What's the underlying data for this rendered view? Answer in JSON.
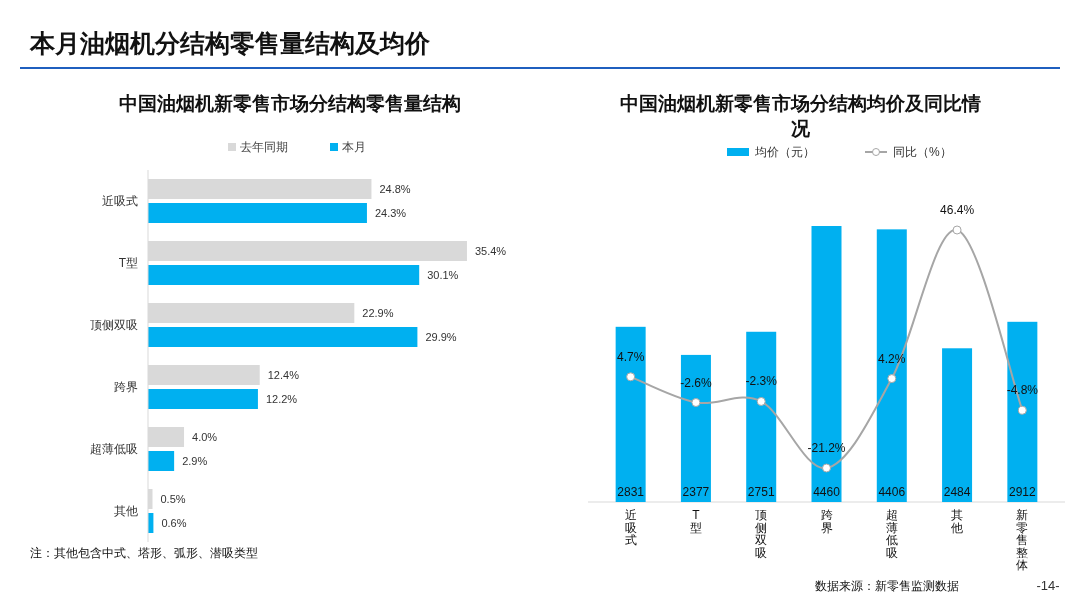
{
  "chart_data": [
    {
      "type": "other",
      "title": "本月油烟机分结构零售量结构及均价",
      "annotations": [
        "-14-"
      ]
    },
    {
      "type": "bar",
      "orientation": "horizontal",
      "title": "中国油烟机新零售市场分结构零售量结构",
      "categories": [
        "近吸式",
        "T型",
        "顶侧双吸",
        "跨界",
        "超薄低吸",
        "其他"
      ],
      "legend": "top",
      "series": [
        {
          "name": "去年同期",
          "color": "#d9d9d9",
          "values": [
            24.8,
            35.4,
            22.9,
            12.4,
            4.0,
            0.5
          ],
          "value_labels": [
            "24.8%",
            "35.4%",
            "22.9%",
            "12.4%",
            "4.0%",
            "0.5%"
          ]
        },
        {
          "name": "本月",
          "color": "#00b0f0",
          "values": [
            24.3,
            30.1,
            29.9,
            12.2,
            2.9,
            0.6
          ],
          "value_labels": [
            "24.3%",
            "30.1%",
            "29.9%",
            "12.2%",
            "2.9%",
            "0.6%"
          ]
        }
      ],
      "annotations": [
        "注：其他包含中式、塔形、弧形、潜吸类型"
      ]
    },
    {
      "type": "bar",
      "title": "中国油烟机新零售市场分结构均价及同比情况",
      "categories": [
        "近吸式",
        "T型",
        "顶侧双吸",
        "跨界",
        "超薄低吸",
        "其他",
        "新零售整体"
      ],
      "legend": "top",
      "marker": "circle",
      "series": [
        {
          "name": "均价（元）",
          "type": "bar",
          "color": "#00b0f0",
          "values": [
            2831,
            2377,
            2751,
            4460,
            4406,
            2484,
            2912
          ],
          "value_labels": [
            "2831",
            "2377",
            "2751",
            "4460",
            "4406",
            "2484",
            "2912"
          ]
        },
        {
          "name": "同比（%）",
          "type": "line",
          "axis": "y2",
          "color": "#a6a6a6",
          "values": [
            4.7,
            -2.6,
            -2.3,
            -21.2,
            4.2,
            46.4,
            -4.8
          ],
          "value_labels": [
            "4.7%",
            "-2.6%",
            "-2.3%",
            "-21.2%",
            "4.2%",
            "46.4%",
            "-4.8%"
          ]
        }
      ],
      "annotations": [
        "数据来源：新零售监测数据"
      ]
    }
  ]
}
